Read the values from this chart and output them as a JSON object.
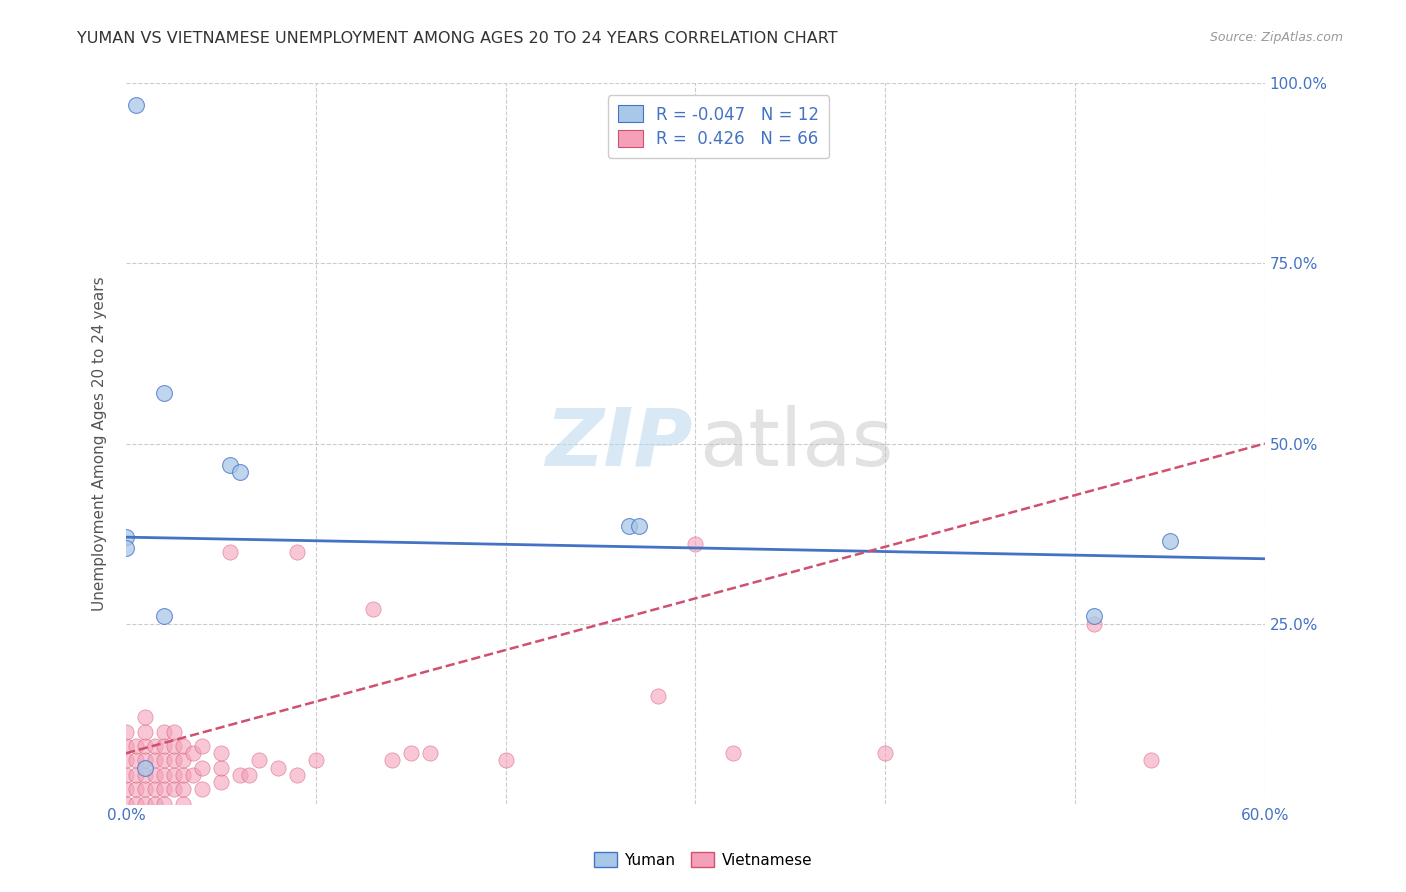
{
  "title": "YUMAN VS VIETNAMESE UNEMPLOYMENT AMONG AGES 20 TO 24 YEARS CORRELATION CHART",
  "source": "Source: ZipAtlas.com",
  "ylabel": "Unemployment Among Ages 20 to 24 years",
  "xlim": [
    0.0,
    0.6
  ],
  "ylim": [
    0.0,
    1.0
  ],
  "yuman_R": -0.047,
  "yuman_N": 12,
  "vietnamese_R": 0.426,
  "vietnamese_N": 66,
  "yuman_color": "#A8C8E8",
  "vietnamese_color": "#F4A0B8",
  "yuman_line_color": "#4472C4",
  "vietnamese_line_color": "#D05070",
  "background_color": "#FFFFFF",
  "yuman_line_y0": 0.37,
  "yuman_line_y1": 0.34,
  "vietnamese_line_y0": 0.07,
  "vietnamese_line_y1": 0.5,
  "yuman_x": [
    0.005,
    0.02,
    0.02,
    0.055,
    0.06,
    0.0,
    0.0,
    0.265,
    0.27,
    0.51,
    0.55,
    0.01
  ],
  "yuman_y": [
    0.97,
    0.57,
    0.26,
    0.47,
    0.46,
    0.37,
    0.355,
    0.385,
    0.385,
    0.26,
    0.365,
    0.05
  ],
  "vietnamese_x": [
    0.0,
    0.0,
    0.0,
    0.0,
    0.0,
    0.0,
    0.005,
    0.005,
    0.005,
    0.005,
    0.005,
    0.01,
    0.01,
    0.01,
    0.01,
    0.01,
    0.01,
    0.01,
    0.015,
    0.015,
    0.015,
    0.015,
    0.015,
    0.02,
    0.02,
    0.02,
    0.02,
    0.02,
    0.02,
    0.025,
    0.025,
    0.025,
    0.025,
    0.025,
    0.03,
    0.03,
    0.03,
    0.03,
    0.03,
    0.035,
    0.035,
    0.04,
    0.04,
    0.04,
    0.05,
    0.05,
    0.05,
    0.055,
    0.06,
    0.065,
    0.07,
    0.08,
    0.09,
    0.09,
    0.1,
    0.13,
    0.14,
    0.15,
    0.16,
    0.2,
    0.28,
    0.3,
    0.32,
    0.4,
    0.51,
    0.54
  ],
  "vietnamese_y": [
    0.0,
    0.02,
    0.04,
    0.06,
    0.08,
    0.1,
    0.0,
    0.02,
    0.04,
    0.06,
    0.08,
    0.0,
    0.02,
    0.04,
    0.06,
    0.08,
    0.1,
    0.12,
    0.0,
    0.02,
    0.04,
    0.06,
    0.08,
    0.0,
    0.02,
    0.04,
    0.06,
    0.08,
    0.1,
    0.02,
    0.04,
    0.06,
    0.08,
    0.1,
    0.0,
    0.02,
    0.04,
    0.06,
    0.08,
    0.04,
    0.07,
    0.02,
    0.05,
    0.08,
    0.03,
    0.05,
    0.07,
    0.35,
    0.04,
    0.04,
    0.06,
    0.05,
    0.04,
    0.35,
    0.06,
    0.27,
    0.06,
    0.07,
    0.07,
    0.06,
    0.15,
    0.36,
    0.07,
    0.07,
    0.25,
    0.06
  ]
}
